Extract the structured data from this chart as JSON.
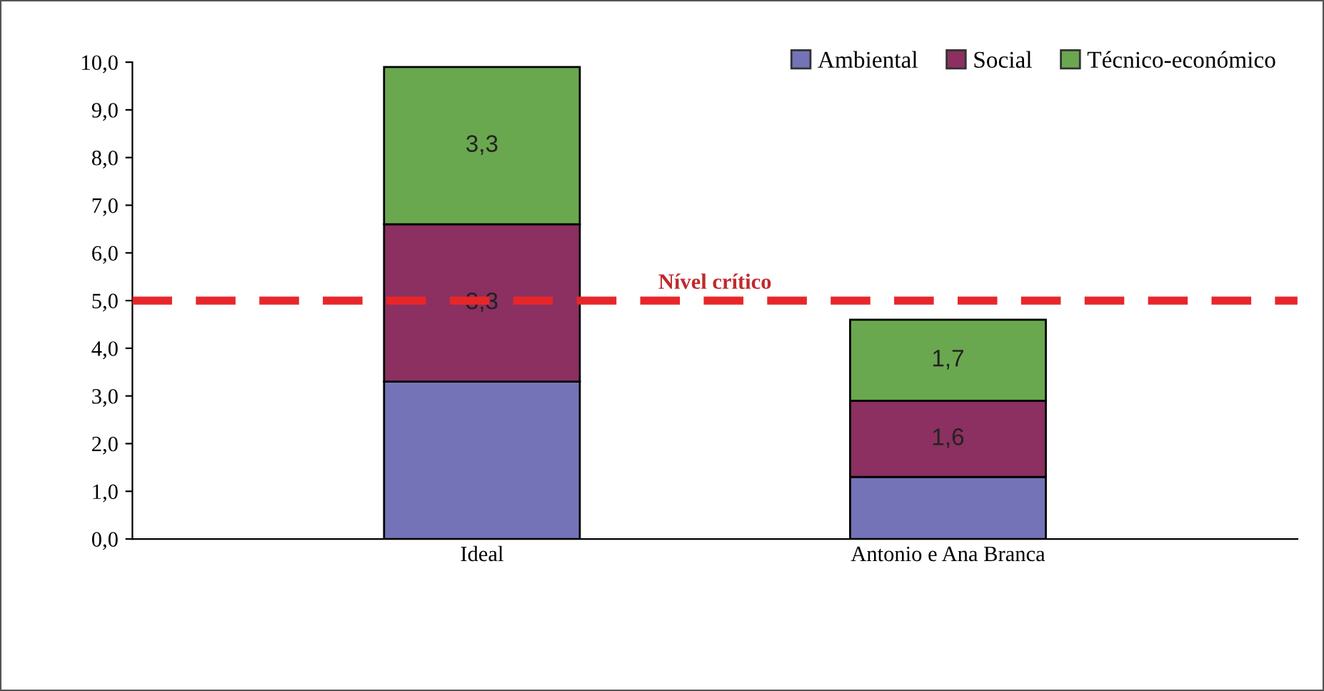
{
  "chart_data": {
    "type": "bar",
    "stacked": true,
    "categories": [
      "Ideal",
      "Antonio e Ana Branca"
    ],
    "series": [
      {
        "name": "Ambiental",
        "color": "#7473b8",
        "values": [
          3.3,
          1.3
        ],
        "value_labels": [
          null,
          null
        ]
      },
      {
        "name": "Social",
        "color": "#8b3060",
        "values": [
          3.3,
          1.6
        ],
        "value_labels": [
          "3,3",
          "1,6"
        ]
      },
      {
        "name": "Técnico-económico",
        "color": "#6aa84f",
        "values": [
          3.3,
          1.7
        ],
        "value_labels": [
          "3,3",
          "1,7"
        ]
      }
    ],
    "ylim": [
      0,
      10
    ],
    "yticks": [
      {
        "value": 0,
        "label": "0,0"
      },
      {
        "value": 1,
        "label": "1,0"
      },
      {
        "value": 2,
        "label": "2,0"
      },
      {
        "value": 3,
        "label": "3,0"
      },
      {
        "value": 4,
        "label": "4,0"
      },
      {
        "value": 5,
        "label": "5,0"
      },
      {
        "value": 6,
        "label": "6,0"
      },
      {
        "value": 7,
        "label": "7,0"
      },
      {
        "value": 8,
        "label": "8,0"
      },
      {
        "value": 9,
        "label": "9,0"
      },
      {
        "value": 10,
        "label": "10,0"
      }
    ],
    "ref_lines": [
      {
        "axis": "y",
        "value": 5,
        "label": "Nível crítico",
        "color": "#e8262a",
        "line_style": "dashed"
      }
    ],
    "legend": "top right",
    "grid": false
  }
}
